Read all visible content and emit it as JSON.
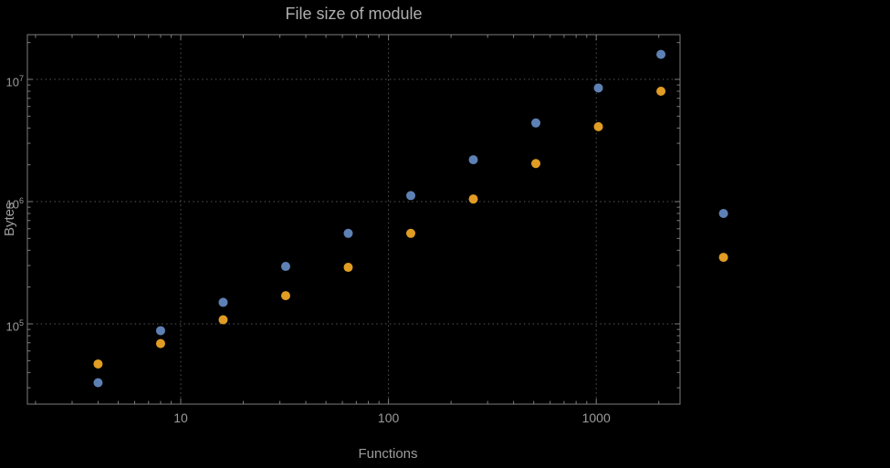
{
  "chart_data": {
    "type": "scatter",
    "title": "File size of module",
    "xlabel": "Functions",
    "ylabel": "Bytes",
    "xscale": "log",
    "yscale": "log",
    "grid": "dotted",
    "legend": "none",
    "xlim": [
      1.8,
      2500
    ],
    "ylim": [
      22000,
      24000000
    ],
    "x_ticks": [
      10,
      100,
      1000
    ],
    "y_ticks": [
      100000,
      1000000,
      10000000
    ],
    "x": [
      4,
      8,
      16,
      32,
      64,
      128,
      256,
      512,
      1024,
      2048,
      4096
    ],
    "series": [
      {
        "name": "blue",
        "color": "#5E81B5",
        "values": [
          33000,
          88000,
          150000,
          295000,
          550000,
          1120000,
          2200000,
          4400000,
          8500000,
          16000000,
          800000
        ]
      },
      {
        "name": "orange",
        "color": "#E19C24",
        "values": [
          47000,
          69000,
          108000,
          170000,
          290000,
          550000,
          1050000,
          2050000,
          4100000,
          8000000,
          350000
        ]
      }
    ]
  },
  "colors": {
    "background": "#000000",
    "frame": "#7c7c7c",
    "grid": "#565656",
    "text": "#9c9c9c",
    "series_blue": "#5E81B5",
    "series_orange": "#E19C24"
  }
}
